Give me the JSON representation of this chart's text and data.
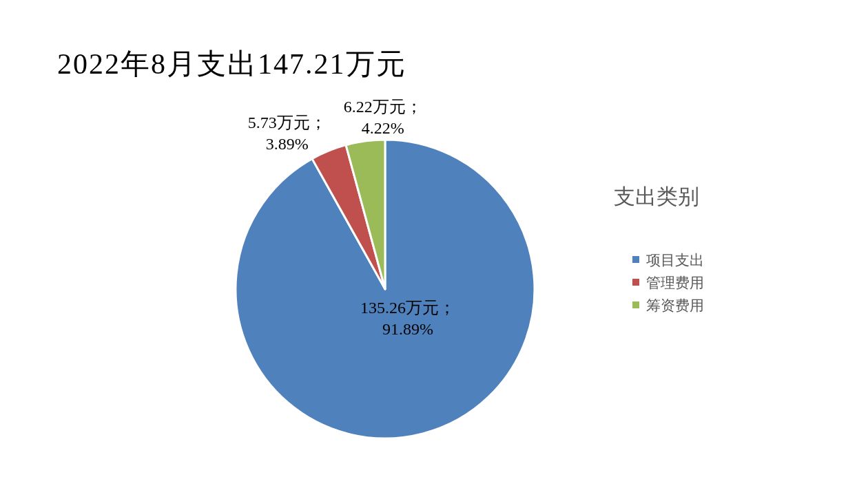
{
  "chart_data": {
    "type": "pie",
    "title": "2022年8月支出147.21万元",
    "categories": [
      "项目支出",
      "管理费用",
      "筹资费用"
    ],
    "values": [
      135.26,
      5.73,
      6.22
    ],
    "colors": [
      "#4f81bd",
      "#c0504d",
      "#9bbb59"
    ],
    "value_labels": [
      "135.26万元；\n91.89%",
      "5.73万元；\n3.89%",
      "6.22万元；\n4.22%"
    ],
    "legend_title": "支出类别",
    "legend": "right"
  }
}
